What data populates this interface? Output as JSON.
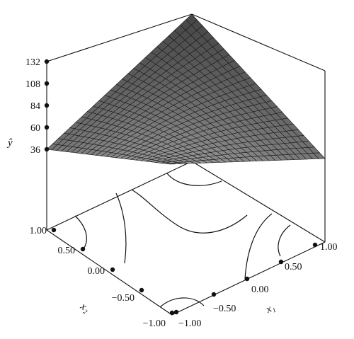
{
  "chart_data": {
    "type": "surface",
    "zlabel": "ŷ",
    "xlabel": "x₁",
    "ylabel": "x₂",
    "z_ticks": [
      "132",
      "108",
      "84",
      "60",
      "36"
    ],
    "x1_ticks": [
      "−1.00",
      "−0.50",
      "0.00",
      "0.50",
      "1.00"
    ],
    "x2_ticks": [
      "1.00",
      "0.50",
      "0.00",
      "−0.50",
      "−1.00"
    ],
    "x_range": [
      -1,
      1
    ],
    "y_range": [
      -1,
      1
    ],
    "z_range": [
      36,
      132
    ],
    "corner_values": {
      "x1_-1_x2_-1": 36,
      "x1_1_x2_1": 132,
      "x1_-1_x2_1": 36,
      "x1_1_x2_-1": 36
    },
    "surface_color": "#8a8a8a",
    "grid_lines": 25
  }
}
